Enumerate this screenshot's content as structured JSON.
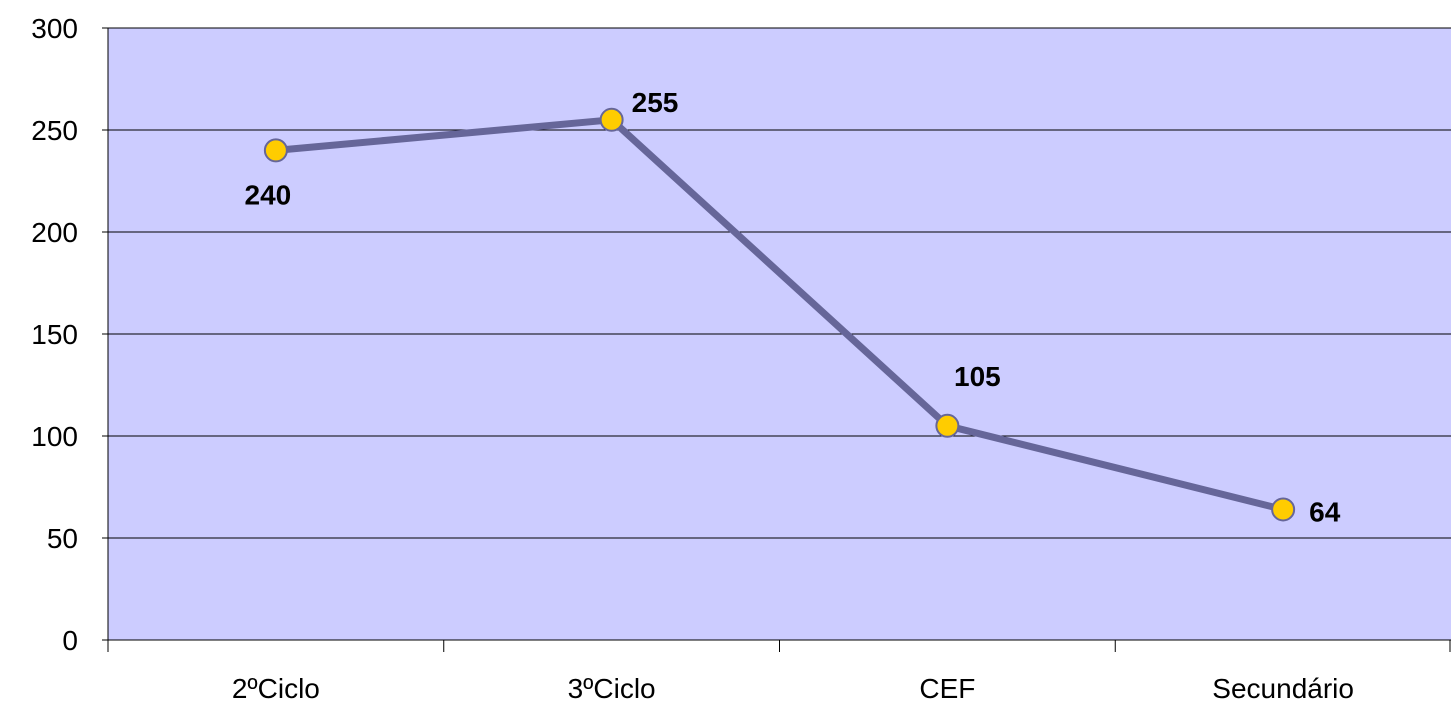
{
  "chart_data": {
    "type": "line",
    "title": "",
    "xlabel": "",
    "ylabel": "",
    "categories": [
      "2ºCiclo",
      "3ºCiclo",
      "CEF",
      "Secundário"
    ],
    "series": [
      {
        "values": [
          240,
          255,
          105,
          64
        ]
      }
    ],
    "ylim": [
      0,
      300
    ],
    "yticks": [
      0,
      50,
      100,
      150,
      200,
      250,
      300
    ],
    "ytick_labels": [
      "0",
      "50",
      "100",
      "150",
      "200",
      "250",
      "300"
    ],
    "data_labels": [
      "240",
      "255",
      "105",
      "64"
    ],
    "grid": true,
    "legend": "none",
    "colors": {
      "plot_background": "#ccccff",
      "line": "#666699",
      "marker_fill": "#ffcc00",
      "marker_stroke": "#666699",
      "gridline": "#000000"
    }
  }
}
